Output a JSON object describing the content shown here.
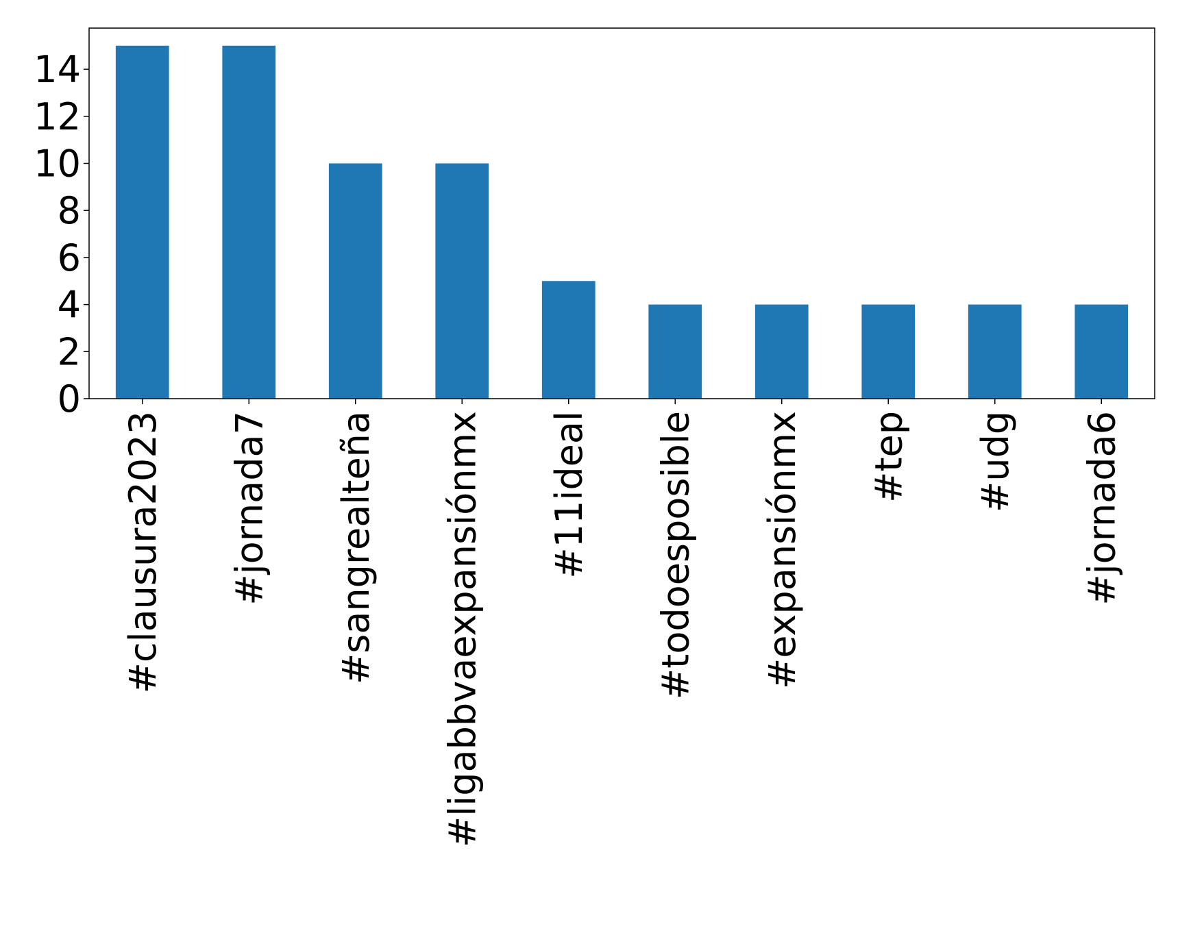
{
  "chart_data": {
    "type": "bar",
    "title": "",
    "xlabel": "",
    "ylabel": "",
    "categories": [
      "#clausura2023",
      "#jornada7",
      "#sangrealteña",
      "#ligabbvaexpansiónmx",
      "#11ideal",
      "#todoesposible",
      "#expansiónmx",
      "#tep",
      "#udg",
      "#jornada6"
    ],
    "values": [
      15,
      15,
      10,
      10,
      5,
      4,
      4,
      4,
      4,
      4
    ],
    "ylim": [
      0,
      15.75
    ],
    "yticks": [
      0,
      2,
      4,
      6,
      8,
      10,
      12,
      14
    ],
    "bar_color": "#1f77b4",
    "grid": false,
    "legend": "none"
  }
}
